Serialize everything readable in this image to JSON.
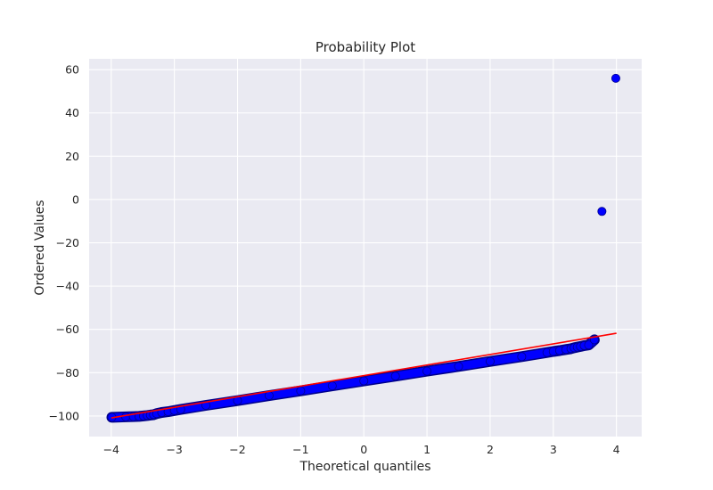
{
  "chart_data": {
    "type": "scatter",
    "title": "Probability Plot",
    "xlabel": "Theoretical quantiles",
    "ylabel": "Ordered Values",
    "xlim": [
      -4.35,
      4.4
    ],
    "ylim": [
      -109.5,
      65
    ],
    "x_ticks": [
      -4,
      -3,
      -2,
      -1,
      0,
      1,
      2,
      3,
      4
    ],
    "x_tick_labels": [
      "−4",
      "−3",
      "−2",
      "−1",
      "0",
      "1",
      "2",
      "3",
      "4"
    ],
    "y_ticks": [
      60,
      40,
      20,
      0,
      -20,
      -40,
      -60,
      -80,
      -100
    ],
    "y_tick_labels": [
      "60",
      "40",
      "20",
      "0",
      "−20",
      "−40",
      "−60",
      "−80",
      "−100"
    ],
    "grid": true,
    "series": [
      {
        "kind": "markers",
        "color": "#0000ff",
        "points": [
          [
            -3.99,
            -100.6
          ],
          [
            -3.77,
            -100.4
          ],
          [
            -3.65,
            -100.3
          ],
          [
            -3.56,
            -100.2
          ],
          [
            -3.49,
            -100.0
          ],
          [
            -3.43,
            -99.8
          ],
          [
            -3.38,
            -99.6
          ],
          [
            -3.33,
            -99.4
          ],
          [
            -3.28,
            -98.9
          ],
          [
            -3.2,
            -98.4
          ],
          [
            -3.1,
            -98.0
          ],
          [
            -3.0,
            -97.5
          ],
          [
            -2.9,
            -97.0
          ],
          [
            -2.5,
            -95.1
          ],
          [
            -2.0,
            -92.9
          ],
          [
            -1.5,
            -90.6
          ],
          [
            -1.0,
            -88.4
          ],
          [
            -0.5,
            -86.1
          ],
          [
            0.0,
            -83.8
          ],
          [
            0.5,
            -81.6
          ],
          [
            1.0,
            -79.3
          ],
          [
            1.5,
            -77.1
          ],
          [
            2.0,
            -74.8
          ],
          [
            2.5,
            -72.6
          ],
          [
            2.9,
            -70.7
          ],
          [
            3.0,
            -70.2
          ],
          [
            3.1,
            -69.8
          ],
          [
            3.2,
            -69.3
          ],
          [
            3.28,
            -68.9
          ],
          [
            3.33,
            -68.5
          ],
          [
            3.38,
            -68.2
          ],
          [
            3.43,
            -67.9
          ],
          [
            3.49,
            -67.5
          ],
          [
            3.56,
            -67.2
          ],
          [
            3.65,
            -64.8
          ],
          [
            3.77,
            -5.5
          ],
          [
            3.99,
            56.0
          ]
        ]
      },
      {
        "kind": "fit-line",
        "color": "#ff0000",
        "points": [
          [
            -4.0,
            -100.9
          ],
          [
            4.0,
            -61.8
          ]
        ]
      }
    ]
  }
}
